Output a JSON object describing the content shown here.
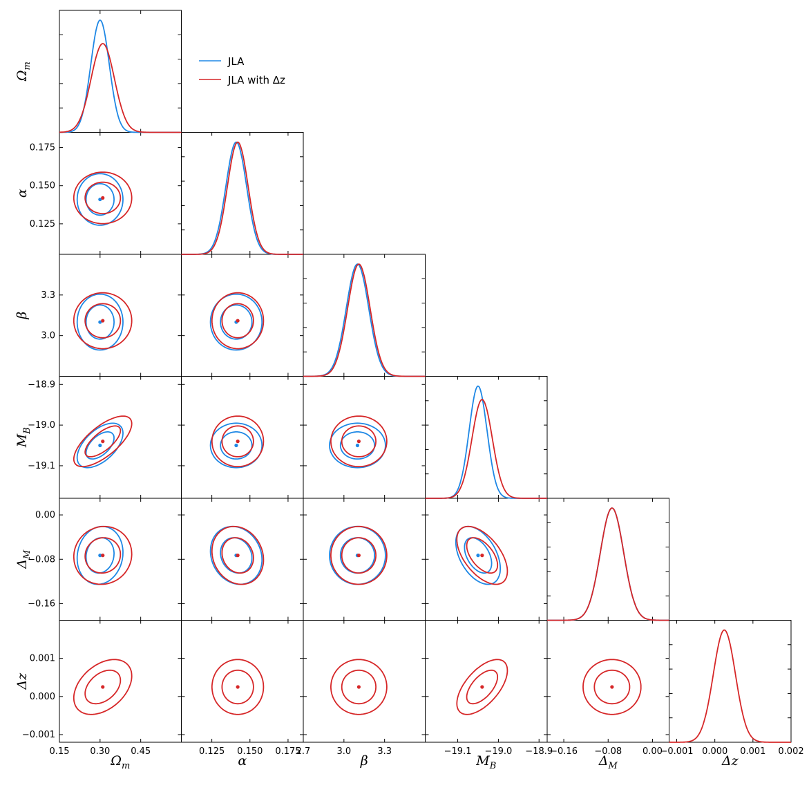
{
  "chart_data": {
    "type": "corner",
    "parameters": [
      {
        "key": "Om",
        "label": "Ω_m",
        "range": [
          0.15,
          0.6
        ],
        "ticks": [
          0.15,
          0.3,
          0.45
        ],
        "tick_labels": [
          "0.15",
          "0.30",
          "0.45"
        ]
      },
      {
        "key": "alpha",
        "label": "α",
        "range": [
          0.105,
          0.185
        ],
        "ticks": [
          0.125,
          0.15,
          0.175
        ],
        "tick_labels": [
          "0.125",
          "0.150",
          "0.175"
        ]
      },
      {
        "key": "beta",
        "label": "β",
        "range": [
          2.7,
          3.6
        ],
        "ticks": [
          2.7,
          3.0,
          3.3
        ],
        "tick_labels": [
          "2.7",
          "3.0",
          "3.3"
        ]
      },
      {
        "key": "MB",
        "label": "M_B^1",
        "range": [
          -19.18,
          -18.88
        ],
        "ticks": [
          -19.1,
          -19.0,
          -18.9
        ],
        "tick_labels": [
          "−19.1",
          "−19.0",
          "−18.9"
        ]
      },
      {
        "key": "DM",
        "label": "Δ_M",
        "range": [
          -0.19,
          0.03
        ],
        "ticks": [
          -0.16,
          -0.08,
          0.0
        ],
        "tick_labels": [
          "−0.16",
          "−0.08",
          "0.00"
        ]
      },
      {
        "key": "Dz",
        "label": "Δz",
        "range": [
          -0.0012,
          0.002
        ],
        "ticks": [
          -0.001,
          0.0,
          0.001,
          0.002
        ],
        "tick_labels": [
          "−0.001",
          "0.000",
          "0.001",
          "0.002"
        ]
      }
    ],
    "series": [
      {
        "name": "JLA",
        "color": "#1f88e5",
        "mean": {
          "Om": 0.3,
          "alpha": 0.141,
          "beta": 3.1,
          "MB": -19.05,
          "DM": -0.073
        },
        "sigma": {
          "Om": 0.034,
          "alpha": 0.0068,
          "beta": 0.083,
          "MB": 0.022,
          "DM": 0.021
        },
        "correlation": [
          [
            "Om",
            "MB",
            0.55
          ],
          [
            "Om",
            "DM",
            0.1
          ],
          [
            "MB",
            "DM",
            -0.45
          ],
          [
            "alpha",
            "DM",
            -0.15
          ]
        ]
      },
      {
        "name": "JLA with Δz",
        "color": "#d62728",
        "mean": {
          "Om": 0.31,
          "alpha": 0.142,
          "beta": 3.11,
          "MB": -19.04,
          "DM": -0.073,
          "Dz": 0.00025
        },
        "sigma": {
          "Om": 0.043,
          "alpha": 0.0068,
          "beta": 0.083,
          "MB": 0.025,
          "DM": 0.021,
          "Dz": 0.00029
        },
        "correlation": [
          [
            "Om",
            "MB",
            0.7
          ],
          [
            "Om",
            "Dz",
            0.4
          ],
          [
            "MB",
            "Dz",
            0.6
          ],
          [
            "MB",
            "DM",
            -0.55
          ],
          [
            "Om",
            "DM",
            0.05
          ],
          [
            "alpha",
            "DM",
            -0.15
          ]
        ]
      }
    ],
    "contour_levels": [
      "68%",
      "95%"
    ],
    "legend": {
      "position": "upper-right of top-left panel",
      "entries": [
        "JLA",
        "JLA with Δz"
      ]
    }
  }
}
